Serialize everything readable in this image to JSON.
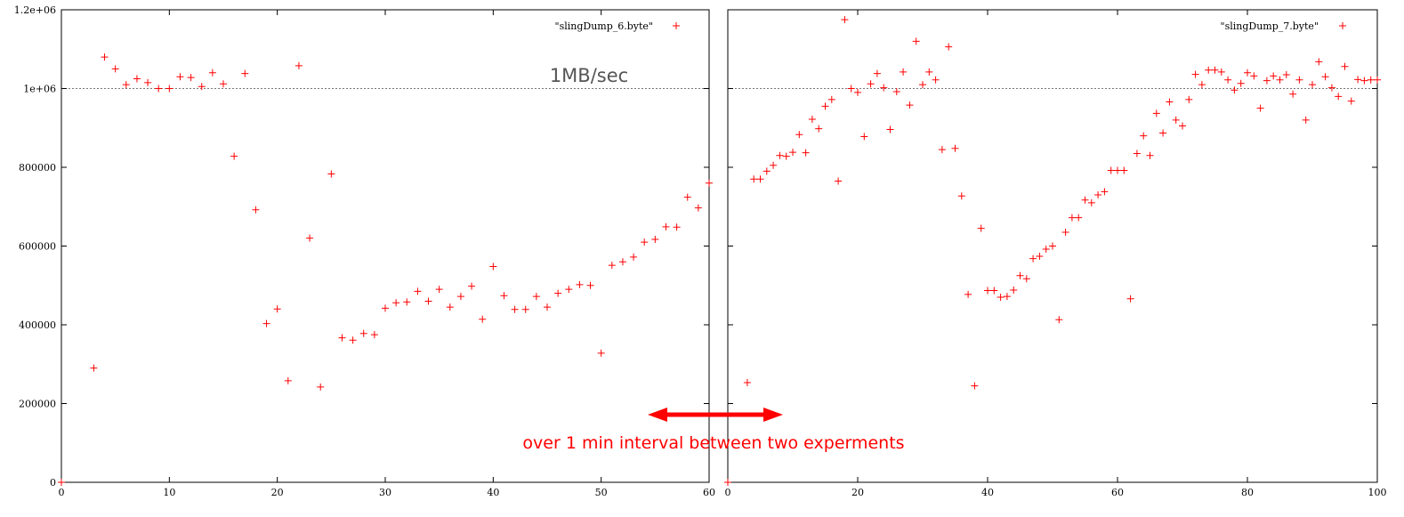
{
  "chart_data": [
    {
      "type": "scatter",
      "series": [
        {
          "name": "\"slingDump_6.byte\"",
          "marker": "+",
          "color": "#ff0000",
          "x": [
            0,
            3,
            4,
            5,
            6,
            7,
            8,
            9,
            10,
            11,
            12,
            13,
            14,
            15,
            16,
            17,
            18,
            19,
            20,
            21,
            22,
            23,
            24,
            25,
            26,
            27,
            28,
            29,
            30,
            31,
            32,
            33,
            34,
            35,
            36,
            37,
            38,
            39,
            40,
            41,
            42,
            43,
            44,
            45,
            46,
            47,
            48,
            49,
            50,
            51,
            52,
            53,
            54,
            55,
            56,
            57,
            58,
            59,
            60
          ],
          "y": [
            0,
            290000,
            1080000,
            1050000,
            1010000,
            1025000,
            1015000,
            1000000,
            1000000,
            1030000,
            1028000,
            1005000,
            1040000,
            1012000,
            828000,
            1038000,
            692000,
            403000,
            440000,
            258000,
            1058000,
            620000,
            242000,
            783000,
            367000,
            361000,
            378000,
            375000,
            442000,
            456000,
            458000,
            485000,
            460000,
            490000,
            445000,
            472000,
            498000,
            414000,
            548000,
            474000,
            439000,
            439000,
            472000,
            445000,
            480000,
            490000,
            502000,
            500000,
            328000,
            551000,
            560000,
            572000,
            610000,
            617000,
            649000,
            648000,
            724000,
            697000,
            760000
          ]
        }
      ],
      "xlim": [
        0,
        60
      ],
      "ylim": [
        0,
        1200000
      ],
      "x_ticks": [
        "0",
        "10",
        "20",
        "30",
        "40",
        "50",
        "60"
      ],
      "y_ticks": [
        "0",
        "200000",
        "400000",
        "600000",
        "800000",
        "1e+06",
        "1.2e+06"
      ],
      "reference_line": {
        "y": 1000000,
        "label": "1MB/sec",
        "style": "dotted",
        "color": "#777777"
      },
      "legend_position": "top-right",
      "grid": false
    },
    {
      "type": "scatter",
      "series": [
        {
          "name": "\"slingDump_7.byte\"",
          "marker": "+",
          "color": "#ff0000",
          "x": [
            0,
            3,
            4,
            5,
            6,
            7,
            8,
            9,
            10,
            11,
            12,
            13,
            14,
            15,
            16,
            17,
            18,
            19,
            20,
            21,
            22,
            23,
            24,
            25,
            26,
            27,
            28,
            29,
            30,
            31,
            32,
            33,
            34,
            35,
            36,
            37,
            38,
            39,
            40,
            41,
            42,
            43,
            44,
            45,
            46,
            47,
            48,
            49,
            50,
            51,
            52,
            53,
            54,
            55,
            56,
            57,
            58,
            59,
            60,
            61,
            62,
            63,
            64,
            65,
            66,
            67,
            68,
            69,
            70,
            71,
            72,
            73,
            74,
            75,
            76,
            77,
            78,
            79,
            80,
            81,
            82,
            83,
            84,
            85,
            86,
            87,
            88,
            89,
            90,
            91,
            92,
            93,
            94,
            95,
            96,
            97,
            98,
            99,
            100
          ],
          "y": [
            0,
            253000,
            770000,
            770000,
            790000,
            805000,
            830000,
            828000,
            838000,
            883000,
            837000,
            922000,
            898000,
            955000,
            972000,
            765000,
            1175000,
            1000000,
            990000,
            878000,
            1012000,
            1038000,
            1002000,
            896000,
            992000,
            1042000,
            958000,
            1120000,
            1010000,
            1042000,
            1022000,
            845000,
            1106000,
            848000,
            727000,
            477000,
            245000,
            645000,
            487000,
            487000,
            470000,
            472000,
            488000,
            525000,
            517000,
            568000,
            574000,
            592000,
            600000,
            413000,
            635000,
            672000,
            672000,
            717000,
            710000,
            730000,
            738000,
            792000,
            792000,
            792000,
            466000,
            835000,
            880000,
            830000,
            937000,
            887000,
            966000,
            920000,
            905000,
            972000,
            1036000,
            1010000,
            1047000,
            1047000,
            1042000,
            1022000,
            996000,
            1013000,
            1040000,
            1032000,
            950000,
            1020000,
            1032000,
            1022000,
            1035000,
            986000,
            1022000,
            920000,
            1010000,
            1068000,
            1030000,
            1002000,
            980000,
            1056000,
            968000,
            1023000,
            1020000,
            1022000,
            1022000
          ]
        }
      ],
      "xlim": [
        0,
        100
      ],
      "ylim": [
        0,
        1200000
      ],
      "x_ticks": [
        "0",
        "20",
        "40",
        "60",
        "80",
        "100"
      ],
      "reference_line": {
        "y": 1000000,
        "style": "dotted",
        "color": "#777777"
      },
      "legend_position": "top-right",
      "grid": false
    }
  ],
  "annotation": {
    "text": "over 1 min interval between two experments",
    "arrow": "double-headed",
    "color": "#ff0000"
  }
}
